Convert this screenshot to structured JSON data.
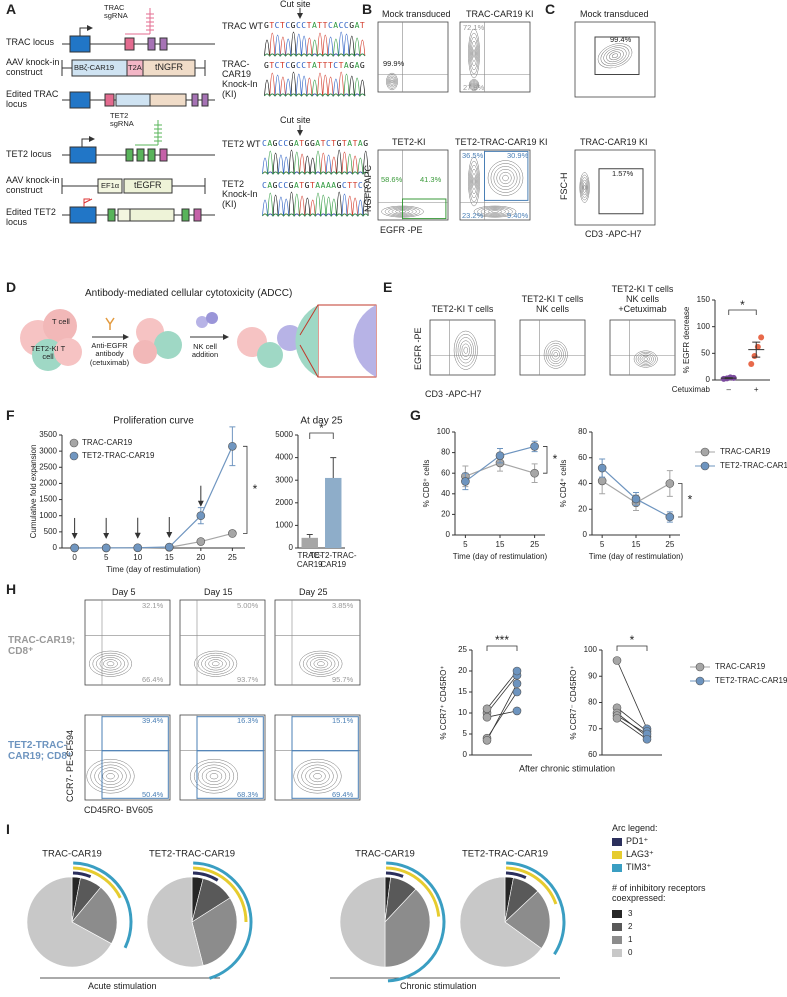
{
  "panels": {
    "a": {
      "letter": "A",
      "trac_locus": "TRAC locus",
      "trac_sgrna": "TRAC sgRNA",
      "aav1": "AAV knock-in construct",
      "car": "BBζ-CAR19",
      "t2a": "T2A",
      "tngfr": "tNGFR",
      "edited_trac": "Edited TRAC locus",
      "trac_wt": "TRAC WT",
      "cut1": "Cut site",
      "trac_ki": "TRAC-CAR19 Knock-In (KI)",
      "seq1": "GTCTCGCCTATTCACCGAT",
      "seq2": "GTCTCGCCTATTTCTAGAG",
      "tet2_locus": "TET2 locus",
      "tet2_sgrna": "TET2 sgRNA",
      "aav2": "AAV knock-in construct",
      "ef1a": "EF1α",
      "tegfr": "tEGFR",
      "edited_tet2": "Edited TET2 locus",
      "tet2_wt": "TET2 WT",
      "cut2": "Cut site",
      "tet2_ki": "TET2 Knock-In (KI)",
      "seq3": "CAGCCGATGGATCTGTATAG",
      "seq4": "CAGCCGATGTAAAAGCTTCG"
    },
    "b": {
      "letter": "B",
      "mock": "Mock transduced",
      "trac_ki": "TRAC-CAR19 KI",
      "tet2_ki": "TET2-KI",
      "double_ki": "TET2-TRAC-CAR19 KI",
      "p1": "99.9%",
      "p2": "72.1%",
      "p3": "27.9%",
      "p4": "58.6%",
      "p5": "41.3%",
      "p6": "36.5%",
      "p7": "30.9%",
      "p8": "23.2%",
      "p9": "9.40%",
      "y_axis": "NGFR-APC",
      "x_axis": "EGFR -PE"
    },
    "c": {
      "letter": "C",
      "mock": "Mock transduced",
      "p1": "99.4%",
      "trac_ki": "TRAC-CAR19 KI",
      "p2": "1.57%",
      "y_axis": "FSC-H",
      "x_axis": "CD3 -APC-H7"
    },
    "d": {
      "letter": "D",
      "title": "Antibody-mediated cellular cytotoxicity (ADCC)",
      "t_cell": "T cell",
      "tet2_cell": "TET2-KI T cell",
      "antibody": "Anti-EGFR antibody (cetuximab)",
      "nk": "NK cell addition"
    },
    "e": {
      "letter": "E",
      "plot1": "TET2-KI T cells",
      "plot2": "TET2-KI T cells NK cells",
      "plot3": "TET2-KI T cells NK cells +Cetuximab",
      "y_axis": "EGFR -PE",
      "x_axis": "CD3 -APC-H7"
    },
    "f": {
      "letter": "F"
    },
    "g": {
      "letter": "G"
    },
    "h": {
      "letter": "H",
      "day5": "Day 5",
      "day15": "Day 15",
      "day25": "Day 25",
      "row1": "TRAC-CAR19; CD8⁺",
      "row2": "TET2-TRAC-CAR19; CD8⁺",
      "p1": "32.1%",
      "p2": "5.00%",
      "p3": "3.85%",
      "p4": "66.4%",
      "p5": "93.7%",
      "p6": "95.7%",
      "p7": "39.4%",
      "p8": "16.3%",
      "p9": "15.1%",
      "p10": "50.4%",
      "p11": "68.3%",
      "p12": "69.4%",
      "y_axis": "CCR7- PE-CF594",
      "x_axis": "CD45RO- BV605"
    },
    "i": {
      "letter": "I",
      "arc_legend": "Arc legend:",
      "pd1": "PD1⁺",
      "lag3": "LAG3⁺",
      "tim3": "TIM3⁺",
      "count_title": "# of inhibitory receptors coexpressed:",
      "acute": "Acute stimulation",
      "chronic": "Chronic stimulation"
    }
  },
  "chart_data": [
    {
      "type": "line",
      "title": "Proliferation curve",
      "ylabel": "Cumulative fold expansion",
      "xlabel": "Time (day of restimulation)",
      "x": [
        0,
        5,
        10,
        15,
        20,
        25
      ],
      "xlim": [
        -2,
        27
      ],
      "xticks": [
        0,
        5,
        10,
        15,
        20,
        25
      ],
      "ylim": [
        0,
        3500
      ],
      "yticks": [
        0,
        500,
        1000,
        1500,
        2000,
        2500,
        3000,
        3500
      ],
      "annotation": "*",
      "series": [
        {
          "name": "TRAC-CAR19",
          "color": "#a6a6a6",
          "values": [
            1,
            2,
            5,
            20,
            200,
            450
          ],
          "errors": [
            0,
            0,
            0,
            0,
            30,
            80
          ]
        },
        {
          "name": "TET2-TRAC-CAR19",
          "color": "#7096c0",
          "values": [
            1,
            3,
            8,
            30,
            1000,
            3150
          ],
          "errors": [
            0,
            0,
            0,
            0,
            250,
            600
          ]
        }
      ]
    },
    {
      "type": "bar",
      "title": "At day 25",
      "categories": [
        "TRAC-CAR19",
        "TET2-TRAC-CAR19"
      ],
      "values": [
        450,
        3100
      ],
      "errors": [
        150,
        900
      ],
      "colors": [
        "#a6a6a6",
        "#8eadc9"
      ],
      "ylim": [
        0,
        5000
      ],
      "yticks": [
        0,
        1000,
        2000,
        3000,
        4000,
        5000
      ],
      "annotation": "*"
    },
    {
      "type": "line",
      "ylabel": "% CD8⁺ cells",
      "xlabel": "Time (day of restimulation)",
      "x": [
        5,
        15,
        25
      ],
      "xlim": [
        2,
        28
      ],
      "xticks": [
        5,
        15,
        25
      ],
      "ylim": [
        0,
        100
      ],
      "yticks": [
        0,
        20,
        40,
        60,
        80,
        100
      ],
      "annotation": "*",
      "series": [
        {
          "name": "TRAC-CAR19",
          "color": "#a6a6a6",
          "values": [
            57,
            70,
            60
          ],
          "errors": [
            10,
            8,
            9
          ]
        },
        {
          "name": "TET2-TRAC-CAR19",
          "color": "#6d94bf",
          "values": [
            52,
            77,
            86
          ],
          "errors": [
            8,
            7,
            5
          ]
        }
      ]
    },
    {
      "type": "line",
      "ylabel": "% CD4⁺ cells",
      "xlabel": "Time (day of restimulation)",
      "x": [
        5,
        15,
        25
      ],
      "xlim": [
        2,
        28
      ],
      "xticks": [
        5,
        15,
        25
      ],
      "ylim": [
        0,
        80
      ],
      "yticks": [
        0,
        20,
        40,
        60,
        80
      ],
      "annotation": "*",
      "series": [
        {
          "name": "TRAC-CAR19",
          "color": "#a6a6a6",
          "values": [
            42,
            25,
            40
          ],
          "errors": [
            10,
            6,
            10
          ]
        },
        {
          "name": "TET2-TRAC-CAR19",
          "color": "#6d94bf",
          "values": [
            52,
            28,
            14
          ],
          "errors": [
            7,
            5,
            4
          ]
        }
      ]
    },
    {
      "type": "strip",
      "ylabel": "% EGFR decrease",
      "xlabel": "Cetuximab",
      "categories": [
        "–",
        "+"
      ],
      "points": [
        [
          2,
          3,
          5,
          4
        ],
        [
          30,
          45,
          62,
          80
        ]
      ],
      "colors": [
        "#7b4a9e",
        "#e8694a"
      ],
      "means": [
        3.5,
        57
      ],
      "errors": [
        1,
        14
      ],
      "ylim": [
        0,
        150
      ],
      "yticks": [
        0,
        50,
        100,
        150
      ],
      "annotation": "*"
    },
    {
      "type": "paired",
      "ylabel": "% CCR7⁺ CD45RO⁺",
      "xlabel": "After chronic stimulation",
      "ylim": [
        0,
        25
      ],
      "yticks": [
        0,
        5,
        10,
        15,
        20,
        25
      ],
      "annotation": "***",
      "series": [
        {
          "name": "TRAC-CAR19",
          "color": "#a6a6a6",
          "values": [
            4,
            3.5,
            10,
            11,
            9
          ]
        },
        {
          "name": "TET2-TRAC-CAR19",
          "color": "#6d94bf",
          "values": [
            15,
            17,
            19,
            20,
            10.5
          ]
        }
      ]
    },
    {
      "type": "paired",
      "ylabel": "% CCR7⁻ CD45RO⁺",
      "ylim": [
        60,
        100
      ],
      "yticks": [
        60,
        70,
        80,
        90,
        100
      ],
      "annotation": "*",
      "series": [
        {
          "name": "TRAC-CAR19",
          "color": "#a6a6a6",
          "values": [
            96,
            78,
            76,
            75,
            74
          ]
        },
        {
          "name": "TET2-TRAC-CAR19",
          "color": "#6d94bf",
          "values": [
            70,
            69,
            67,
            68,
            66
          ]
        }
      ]
    },
    {
      "type": "pie",
      "title": "TRAC-CAR19",
      "categories": [
        "3",
        "2",
        "1",
        "0"
      ],
      "values": [
        3,
        8,
        22,
        67
      ],
      "colors": [
        "#262626",
        "#595959",
        "#8c8c8c",
        "#c8c8c8"
      ]
    },
    {
      "type": "pie",
      "title": "TET2-TRAC-CAR19",
      "categories": [
        "3",
        "2",
        "1",
        "0"
      ],
      "values": [
        4,
        12,
        30,
        54
      ],
      "colors": [
        "#262626",
        "#595959",
        "#8c8c8c",
        "#c8c8c8"
      ]
    },
    {
      "type": "pie",
      "title": "TRAC-CAR19",
      "categories": [
        "3",
        "2",
        "1",
        "0"
      ],
      "values": [
        2,
        10,
        38,
        50
      ],
      "colors": [
        "#262626",
        "#595959",
        "#8c8c8c",
        "#c8c8c8"
      ]
    },
    {
      "type": "pie",
      "title": "TET2-TRAC-CAR19",
      "categories": [
        "3",
        "2",
        "1",
        "0"
      ],
      "values": [
        3,
        10,
        22,
        65
      ],
      "colors": [
        "#262626",
        "#595959",
        "#8c8c8c",
        "#c8c8c8"
      ]
    }
  ]
}
